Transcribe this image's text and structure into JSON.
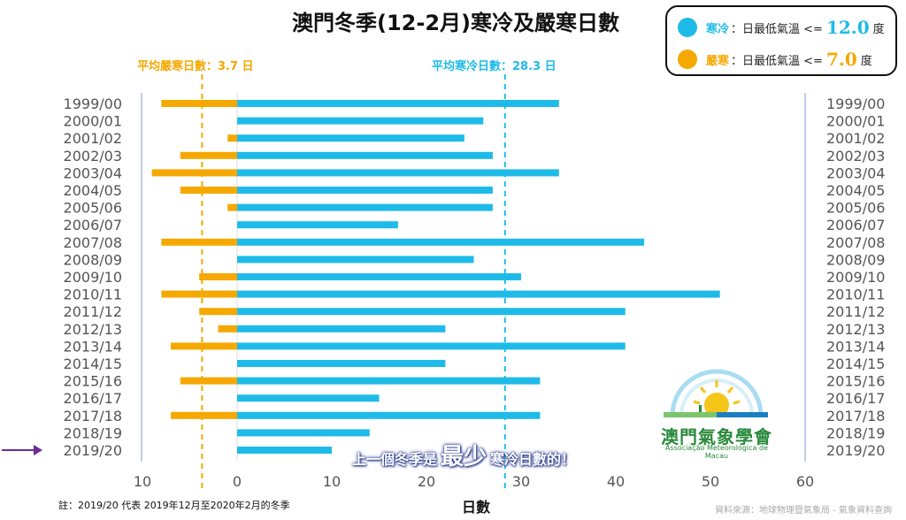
{
  "title": "澳門冬季(12-2月)寒冷及嚴寒日數",
  "legend": {
    "cold": {
      "name": "寒冷",
      "desc": "：日最低氣溫 <=",
      "value": "12.0",
      "unit": "度",
      "color": "#1fbbe8"
    },
    "severe": {
      "name": "嚴寒",
      "desc": "：日最低氣溫 <=",
      "value": "7.0",
      "unit": "度",
      "color": "#f5a800"
    }
  },
  "avg_labels": {
    "severe": "平均嚴寒日數：3.7 日",
    "cold": "平均寒冷日數：28.3 日"
  },
  "callout": {
    "part1": "上一個冬季是",
    "part2": "最少",
    "part3": "寒冷日數的！"
  },
  "note": "註：2019/20 代表 2019年12月至2020年2月的冬季",
  "source": "資料來源：地球物理暨氣象局 - 氣象資料查詢",
  "logo": {
    "name_cn": "澳門氣象學會",
    "name_pt": "Associação Meteorológica de Macau"
  },
  "chart_data": {
    "type": "bar",
    "orientation": "horizontal-diverging",
    "title": "澳門冬季(12-2月)寒冷及嚴寒日數",
    "xlabel": "日數",
    "ylabel": "",
    "xlim": [
      -10,
      60
    ],
    "x_ticks": [
      "10",
      "0",
      "10",
      "20",
      "30",
      "40",
      "50",
      "60"
    ],
    "x_tick_values": [
      -10,
      0,
      10,
      20,
      30,
      40,
      50,
      60
    ],
    "categories": [
      "1999/00",
      "2000/01",
      "2001/02",
      "2002/03",
      "2003/04",
      "2004/05",
      "2005/06",
      "2006/07",
      "2007/08",
      "2008/09",
      "2009/10",
      "2010/11",
      "2011/12",
      "2012/13",
      "2013/14",
      "2014/15",
      "2015/16",
      "2016/17",
      "2017/18",
      "2018/19",
      "2019/20"
    ],
    "series": [
      {
        "name": "寒冷",
        "color": "#1fbbe8",
        "direction": "right",
        "values": [
          34,
          26,
          24,
          27,
          34,
          27,
          27,
          17,
          43,
          25,
          30,
          51,
          41,
          22,
          41,
          22,
          32,
          15,
          32,
          14,
          10
        ]
      },
      {
        "name": "嚴寒",
        "color": "#f5a800",
        "direction": "left",
        "values": [
          8,
          0,
          1,
          6,
          9,
          6,
          1,
          0,
          8,
          0,
          4,
          8,
          4,
          2,
          7,
          0,
          6,
          0,
          7,
          0,
          0
        ]
      }
    ],
    "averages": {
      "寒冷": 28.3,
      "嚴寒": 3.7
    },
    "highlight_category": "2019/20",
    "grid": false
  }
}
